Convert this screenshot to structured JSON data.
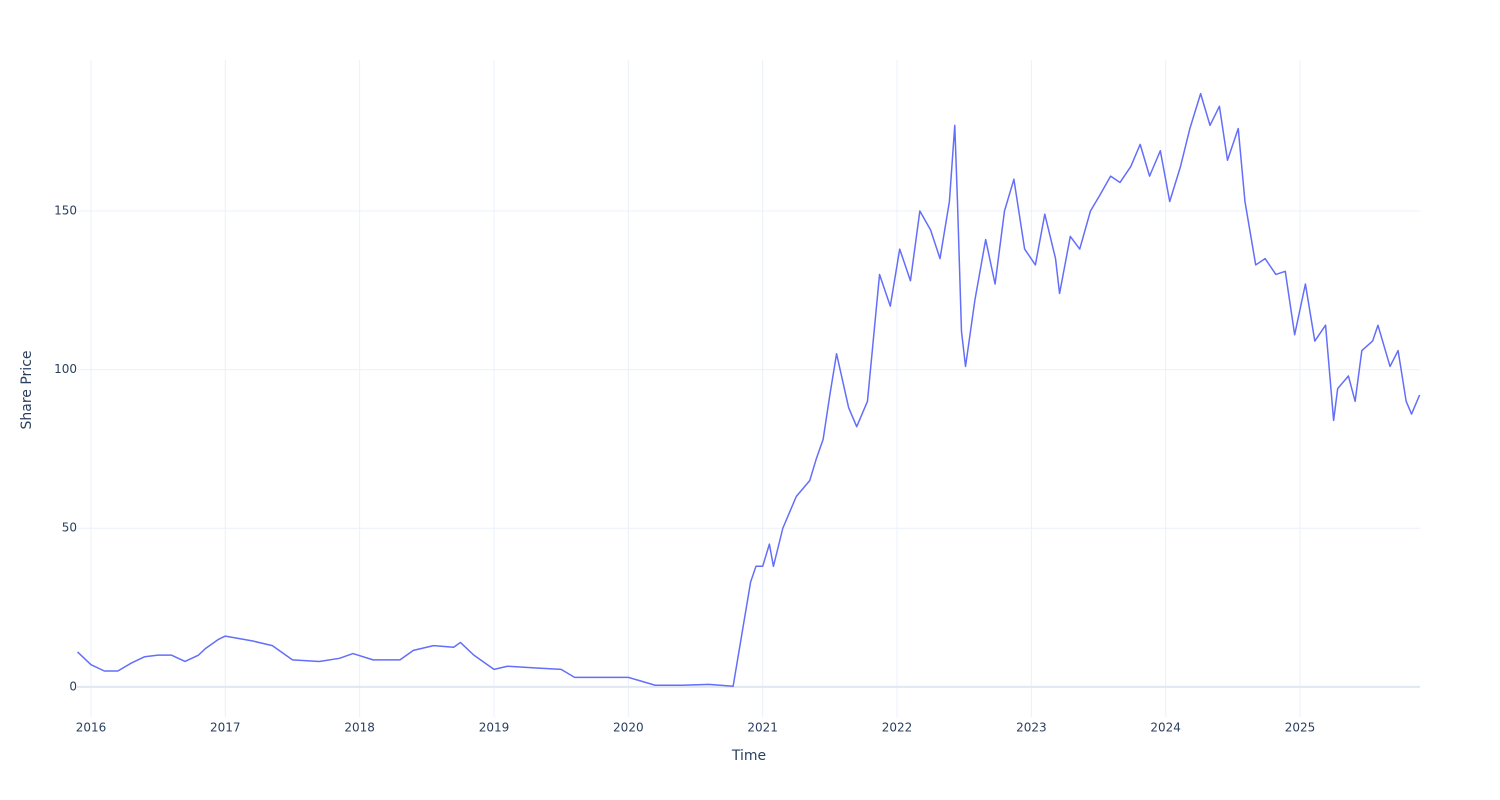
{
  "chart_data": {
    "type": "line",
    "xlabel": "Time",
    "ylabel": "Share Price",
    "xlim": [
      2015.896,
      2025.893
    ],
    "ylim": [
      -9.5,
      197.6
    ],
    "xticks": [
      2016,
      2017,
      2018,
      2019,
      2020,
      2021,
      2022,
      2023,
      2024,
      2025
    ],
    "yticks": [
      0,
      50,
      100,
      150
    ],
    "grid": true,
    "series": [
      {
        "color": "#636efa",
        "x": [
          2015.9,
          2016.0,
          2016.1,
          2016.2,
          2016.3,
          2016.4,
          2016.5,
          2016.6,
          2016.7,
          2016.8,
          2016.85,
          2016.95,
          2017.0,
          2017.2,
          2017.35,
          2017.5,
          2017.7,
          2017.85,
          2017.95,
          2018.1,
          2018.3,
          2018.4,
          2018.55,
          2018.7,
          2018.75,
          2018.85,
          2019.0,
          2019.1,
          2019.3,
          2019.5,
          2019.6,
          2019.8,
          2020.0,
          2020.2,
          2020.4,
          2020.6,
          2020.78,
          2020.91,
          2020.95,
          2021.0,
          2021.05,
          2021.08,
          2021.15,
          2021.25,
          2021.35,
          2021.4,
          2021.45,
          2021.5,
          2021.55,
          2021.64,
          2021.7,
          2021.78,
          2021.87,
          2021.95,
          2022.02,
          2022.1,
          2022.17,
          2022.25,
          2022.32,
          2022.39,
          2022.43,
          2022.45,
          2022.48,
          2022.51,
          2022.58,
          2022.66,
          2022.73,
          2022.8,
          2022.87,
          2022.95,
          2023.03,
          2023.1,
          2023.18,
          2023.21,
          2023.29,
          2023.36,
          2023.44,
          2023.51,
          2023.59,
          2023.66,
          2023.74,
          2023.81,
          2023.88,
          2023.96,
          2024.03,
          2024.11,
          2024.18,
          2024.26,
          2024.33,
          2024.4,
          2024.46,
          2024.54,
          2024.59,
          2024.67,
          2024.74,
          2024.82,
          2024.89,
          2024.96,
          2025.04,
          2025.11,
          2025.19,
          2025.25,
          2025.28,
          2025.36,
          2025.41,
          2025.46,
          2025.54,
          2025.58,
          2025.67,
          2025.73,
          2025.79,
          2025.83,
          2025.89
        ],
        "values": [
          11,
          7,
          5,
          5,
          7.5,
          9.5,
          10,
          10,
          8,
          10,
          12,
          15,
          16,
          14.5,
          13,
          8.5,
          8,
          9,
          10.5,
          8.5,
          8.5,
          11.5,
          13,
          12.5,
          14,
          10,
          5.5,
          6.5,
          6,
          5.5,
          3,
          3,
          3,
          0.5,
          0.5,
          0.8,
          0.2,
          33,
          38,
          38,
          45,
          38,
          50,
          60,
          65,
          72,
          78,
          92,
          105,
          88,
          82,
          90,
          130,
          120,
          138,
          128,
          150,
          144,
          135,
          153,
          177,
          153,
          112,
          101,
          122,
          141,
          127,
          150,
          160,
          138,
          133,
          149,
          135,
          124,
          142,
          138,
          150,
          155,
          161,
          159,
          164,
          171,
          161,
          169,
          153,
          164,
          176,
          187,
          177,
          183,
          166,
          176,
          153,
          133,
          135,
          130,
          131,
          111,
          127,
          109,
          114,
          84,
          94,
          98,
          90,
          106,
          109,
          114,
          101,
          106,
          90,
          86,
          92
        ]
      }
    ]
  }
}
